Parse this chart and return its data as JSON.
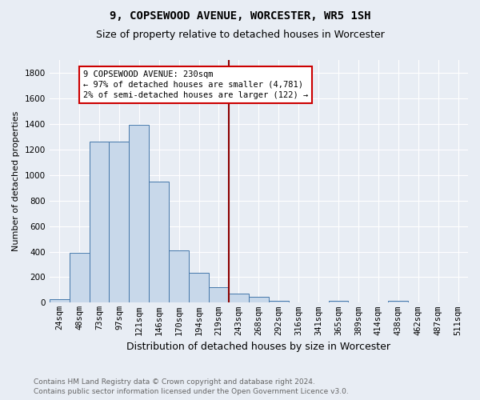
{
  "title": "9, COPSEWOOD AVENUE, WORCESTER, WR5 1SH",
  "subtitle": "Size of property relative to detached houses in Worcester",
  "xlabel": "Distribution of detached houses by size in Worcester",
  "ylabel": "Number of detached properties",
  "footnote1": "Contains HM Land Registry data © Crown copyright and database right 2024.",
  "footnote2": "Contains public sector information licensed under the Open Government Licence v3.0.",
  "bin_labels": [
    "24sqm",
    "48sqm",
    "73sqm",
    "97sqm",
    "121sqm",
    "146sqm",
    "170sqm",
    "194sqm",
    "219sqm",
    "243sqm",
    "268sqm",
    "292sqm",
    "316sqm",
    "341sqm",
    "365sqm",
    "389sqm",
    "414sqm",
    "438sqm",
    "462sqm",
    "487sqm",
    "511sqm"
  ],
  "bin_values": [
    30,
    390,
    1260,
    1260,
    1390,
    950,
    410,
    235,
    120,
    70,
    45,
    15,
    0,
    0,
    15,
    0,
    0,
    15,
    0,
    0,
    0
  ],
  "bar_color": "#c8d8ea",
  "bar_edge_color": "#4477aa",
  "vline_color": "#8b0000",
  "annotation_text": "9 COPSEWOOD AVENUE: 230sqm\n← 97% of detached houses are smaller (4,781)\n2% of semi-detached houses are larger (122) →",
  "annotation_box_color": "#ffffff",
  "annotation_box_edge_color": "#cc0000",
  "ylim": [
    0,
    1900
  ],
  "background_color": "#e8edf4",
  "grid_color": "#ffffff",
  "title_fontsize": 10,
  "subtitle_fontsize": 9,
  "xlabel_fontsize": 9,
  "ylabel_fontsize": 8,
  "tick_fontsize": 7.5,
  "footnote_fontsize": 6.5,
  "footnote_color": "#666666"
}
